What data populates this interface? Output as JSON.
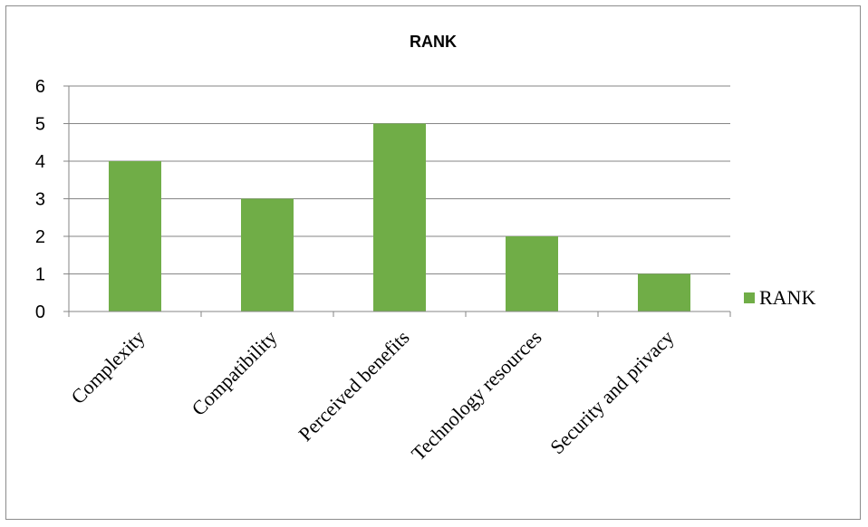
{
  "chart_data": {
    "type": "bar",
    "title": "RANK",
    "categories": [
      "Complexity",
      "Compatibility",
      "Perceived benefits",
      "Technology resources",
      "Security and privacy"
    ],
    "series": [
      {
        "name": "RANK",
        "values": [
          4,
          3,
          5,
          2,
          1
        ]
      }
    ],
    "ylim": [
      0,
      6
    ],
    "yticks": [
      0,
      1,
      2,
      3,
      4,
      5,
      6
    ],
    "grid": true,
    "legend": "right",
    "bar_color": "#70AD47"
  }
}
